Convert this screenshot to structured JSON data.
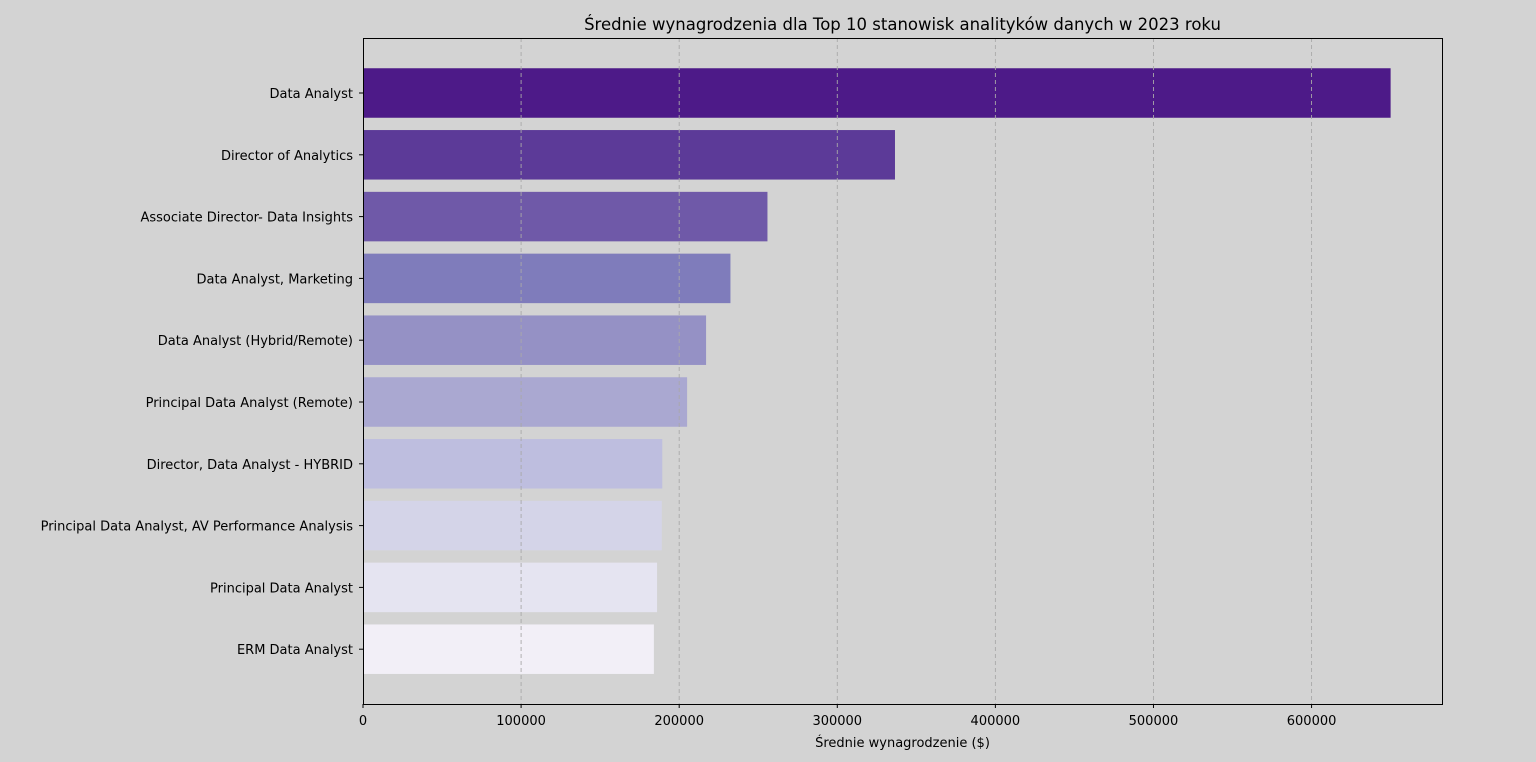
{
  "chart_data": {
    "type": "bar",
    "orientation": "horizontal",
    "title": "Średnie wynagrodzenia dla Top 10 stanowisk analityków danych w 2023 roku",
    "xlabel": "Średnie wynagrodzenie ($)",
    "ylabel": "",
    "categories": [
      "Data Analyst",
      "Director of Analytics",
      "Associate Director- Data Insights",
      "Data Analyst, Marketing",
      "Data Analyst (Hybrid/Remote)",
      "Principal Data Analyst (Remote)",
      "Director, Data Analyst - HYBRID",
      "Principal Data Analyst, AV Performance Analysis",
      "Principal Data Analyst",
      "ERM Data Analyst"
    ],
    "values": [
      650000,
      336500,
      255830,
      232423,
      217000,
      205000,
      189309,
      189000,
      186000,
      184000
    ],
    "colors": [
      "#4d1a88",
      "#5c3a98",
      "#6f59a8",
      "#7f7cbb",
      "#9591c5",
      "#aaa8d1",
      "#bebedf",
      "#d4d4e8",
      "#e5e4f1",
      "#f2eff7"
    ],
    "xlim": [
      0,
      682500
    ],
    "xticks": [
      0,
      100000,
      200000,
      300000,
      400000,
      500000,
      600000
    ],
    "grid": "x-dashed",
    "background": "#d3d3d3"
  }
}
